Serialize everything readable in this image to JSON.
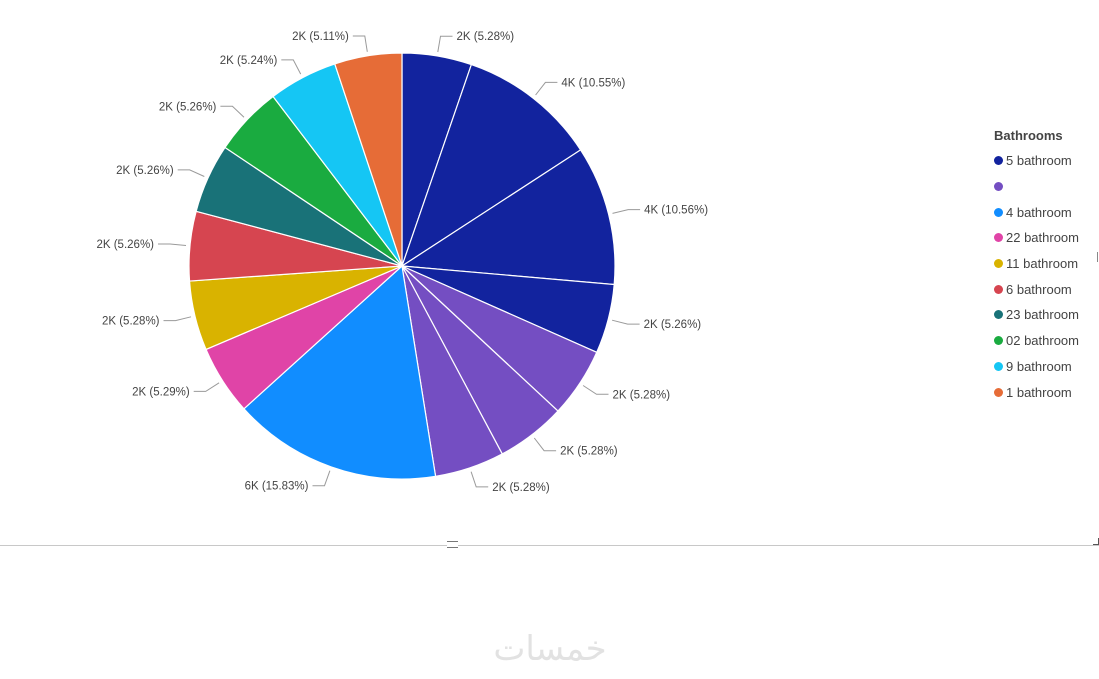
{
  "chart_data": {
    "type": "pie",
    "legend_title": "Bathrooms",
    "legend_position": "right",
    "legend": [
      {
        "name": "5 bathroom",
        "color": "#12239E"
      },
      {
        "name": "",
        "color": "#744EC2"
      },
      {
        "name": "4 bathroom",
        "color": "#118DFF"
      },
      {
        "name": "22 bathroom",
        "color": "#E044A7"
      },
      {
        "name": "11 bathroom",
        "color": "#D9B300"
      },
      {
        "name": "6 bathroom",
        "color": "#D64550"
      },
      {
        "name": "23 bathroom",
        "color": "#197278"
      },
      {
        "name": "02 bathroom",
        "color": "#1AAB40"
      },
      {
        "name": "9 bathroom",
        "color": "#15C6F4"
      },
      {
        "name": "1 bathroom",
        "color": "#E66C37"
      }
    ],
    "slices": [
      {
        "series": "5 bathroom",
        "label": "2K (5.28%)",
        "percent": 5.28
      },
      {
        "series": "5 bathroom",
        "label": "4K (10.55%)",
        "percent": 10.55
      },
      {
        "series": "5 bathroom",
        "label": "4K (10.56%)",
        "percent": 10.56
      },
      {
        "series": "5 bathroom",
        "label": "2K (5.26%)",
        "percent": 5.26
      },
      {
        "series": "",
        "label": "2K (5.28%)",
        "percent": 5.28
      },
      {
        "series": "",
        "label": "2K (5.28%)",
        "percent": 5.28
      },
      {
        "series": "",
        "label": "2K (5.28%)",
        "percent": 5.28
      },
      {
        "series": "4 bathroom",
        "label": "6K (15.83%)",
        "percent": 15.83
      },
      {
        "series": "22 bathroom",
        "label": "2K (5.29%)",
        "percent": 5.29
      },
      {
        "series": "11 bathroom",
        "label": "2K (5.28%)",
        "percent": 5.28
      },
      {
        "series": "6 bathroom",
        "label": "2K (5.26%)",
        "percent": 5.26
      },
      {
        "series": "23 bathroom",
        "label": "2K (5.26%)",
        "percent": 5.26
      },
      {
        "series": "02 bathroom",
        "label": "2K (5.26%)",
        "percent": 5.26
      },
      {
        "series": "9 bathroom",
        "label": "2K (5.24%)",
        "percent": 5.24
      },
      {
        "series": "1 bathroom",
        "label": "2K (5.11%)",
        "percent": 5.11
      }
    ]
  },
  "watermark": {
    "text": "خمسات"
  }
}
